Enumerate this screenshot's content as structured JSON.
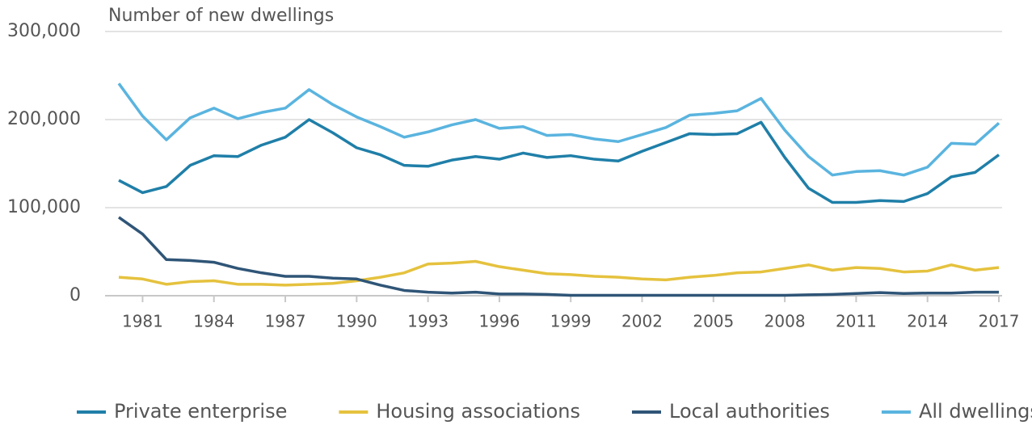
{
  "chart_data": {
    "type": "line",
    "title": "Number of new dwellings",
    "x": [
      1980,
      1981,
      1982,
      1983,
      1984,
      1985,
      1986,
      1987,
      1988,
      1989,
      1990,
      1991,
      1992,
      1993,
      1994,
      1995,
      1996,
      1997,
      1998,
      1999,
      2000,
      2001,
      2002,
      2003,
      2004,
      2005,
      2006,
      2007,
      2008,
      2009,
      2010,
      2011,
      2012,
      2013,
      2014,
      2015,
      2016,
      2017
    ],
    "series": [
      {
        "name": "Private enterprise",
        "color": "#1f7fa8",
        "values": [
          131000,
          117000,
          124000,
          148000,
          159000,
          158000,
          171000,
          180000,
          200000,
          185000,
          168000,
          160000,
          148000,
          147000,
          154000,
          158000,
          155000,
          162000,
          157000,
          159000,
          155000,
          153000,
          164000,
          174000,
          184000,
          183000,
          184000,
          197000,
          157000,
          122000,
          106000,
          106000,
          108000,
          107000,
          116000,
          135000,
          140000,
          160000
        ]
      },
      {
        "name": "Housing associations",
        "color": "#e5c23e",
        "values": [
          21000,
          19000,
          13000,
          16000,
          17000,
          13000,
          13000,
          12000,
          13000,
          14000,
          17000,
          21000,
          26000,
          36000,
          37000,
          39000,
          33000,
          29000,
          25000,
          24000,
          22000,
          21000,
          19000,
          18000,
          21000,
          23000,
          26000,
          27000,
          31000,
          35000,
          29000,
          32000,
          31000,
          27000,
          28000,
          35000,
          29000,
          32000
        ]
      },
      {
        "name": "Local authorities",
        "color": "#2f5577",
        "values": [
          89000,
          70000,
          41000,
          40000,
          38000,
          31000,
          26000,
          22000,
          22000,
          20000,
          19000,
          12000,
          6000,
          4000,
          3000,
          4000,
          2000,
          2000,
          1500,
          500,
          500,
          500,
          500,
          500,
          500,
          500,
          500,
          500,
          500,
          1000,
          1500,
          2500,
          3500,
          2500,
          3000,
          3000,
          4000,
          4000
        ]
      },
      {
        "name": "All dwellings",
        "color": "#5ab4df",
        "values": [
          241000,
          204000,
          177000,
          202000,
          213000,
          201000,
          208000,
          213000,
          234000,
          217000,
          203000,
          192000,
          180000,
          186000,
          194000,
          200000,
          190000,
          192000,
          182000,
          183000,
          178000,
          175000,
          183000,
          191000,
          205000,
          207000,
          210000,
          224000,
          188000,
          158000,
          137000,
          141000,
          142000,
          137000,
          146000,
          173000,
          172000,
          196000
        ]
      }
    ],
    "xlim": [
      1980,
      2017
    ],
    "xticks": [
      1981,
      1984,
      1987,
      1990,
      1993,
      1996,
      1999,
      2002,
      2005,
      2008,
      2011,
      2014,
      2017
    ],
    "ylim": [
      0,
      300000
    ],
    "yticks": [
      0,
      {
        "value": 100000,
        "label": "100,000"
      },
      {
        "value": 200000,
        "label": "200,000"
      },
      {
        "value": 300000,
        "label": "300,000"
      }
    ],
    "grid": true
  }
}
